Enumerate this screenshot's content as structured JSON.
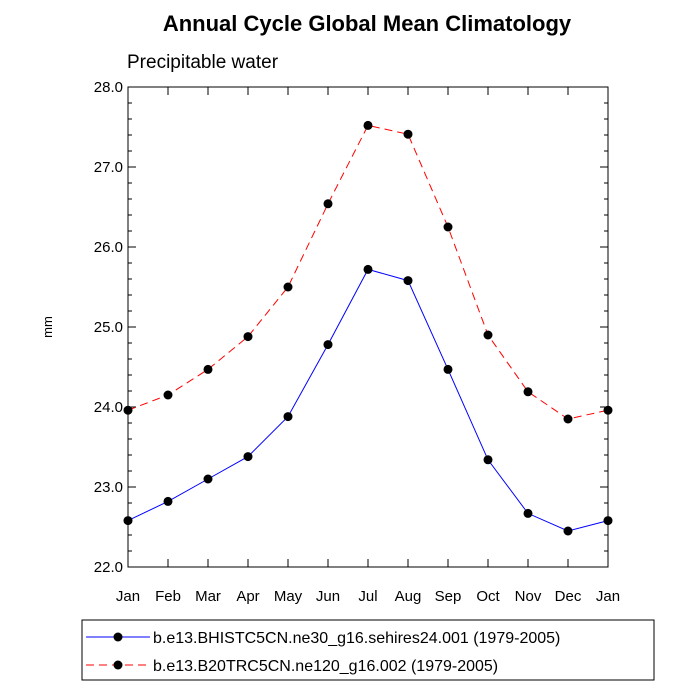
{
  "chart_data": {
    "type": "line",
    "title": "Annual Cycle Global Mean Climatology",
    "subtitle": "Precipitable water",
    "xlabel": "",
    "ylabel": "mm",
    "ylim": [
      22.0,
      28.0
    ],
    "yticks": [
      "22.0",
      "23.0",
      "24.0",
      "25.0",
      "26.0",
      "27.0",
      "28.0"
    ],
    "categories": [
      "Jan",
      "Feb",
      "Mar",
      "Apr",
      "May",
      "Jun",
      "Jul",
      "Aug",
      "Sep",
      "Oct",
      "Nov",
      "Dec",
      "Jan"
    ],
    "grid": false,
    "legend": "bottom",
    "series": [
      {
        "name": "b.e13.BHISTC5CN.ne30_g16.sehires24.001 (1979-2005)",
        "color": "#0000ff",
        "line_style": "solid",
        "marker": "filled-circle",
        "values": [
          22.58,
          22.82,
          23.1,
          23.38,
          23.88,
          24.78,
          25.72,
          25.58,
          24.47,
          23.34,
          22.67,
          22.45,
          22.58
        ]
      },
      {
        "name": "b.e13.B20TRC5CN.ne120_g16.002 (1979-2005)",
        "color": "#ff0000",
        "line_style": "dashed",
        "marker": "filled-circle",
        "values": [
          23.96,
          24.15,
          24.47,
          24.88,
          25.5,
          26.54,
          27.52,
          27.41,
          26.25,
          24.9,
          24.19,
          23.85,
          23.96
        ]
      }
    ]
  }
}
